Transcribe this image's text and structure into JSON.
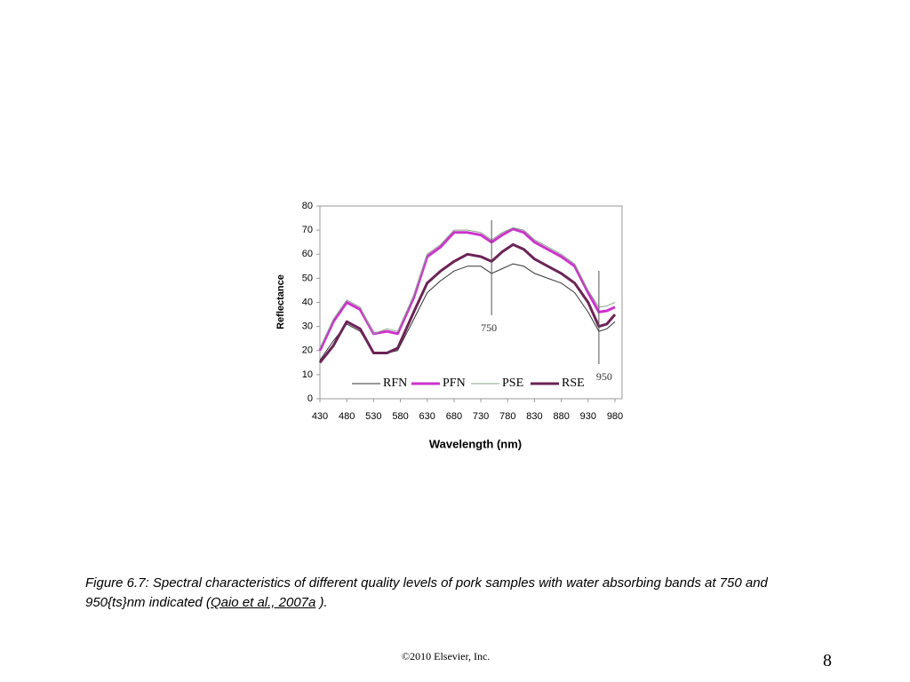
{
  "chart_data": {
    "type": "line",
    "x_label": "Wavelength (nm)",
    "y_label": "Reflectance",
    "x": [
      430,
      455,
      480,
      505,
      530,
      555,
      575,
      605,
      630,
      655,
      680,
      705,
      730,
      750,
      770,
      790,
      810,
      830,
      855,
      880,
      905,
      930,
      950,
      965,
      980
    ],
    "series": [
      {
        "name": "RFN",
        "color": "#333333",
        "line_width": 1,
        "values": [
          16,
          24,
          31,
          28,
          19,
          19,
          20,
          33,
          44,
          49,
          53,
          55,
          55,
          52,
          54,
          56,
          55,
          52,
          50,
          48,
          44,
          36,
          28,
          29,
          32
        ]
      },
      {
        "name": "PFN",
        "color": "#cc33cc",
        "line_width": 3,
        "values": [
          20,
          32,
          40,
          37,
          27,
          28,
          27,
          42,
          59,
          63,
          69,
          69,
          68,
          65,
          68,
          70.5,
          69,
          65,
          62,
          59,
          55,
          44,
          36,
          36.5,
          38
        ]
      },
      {
        "name": "PSE",
        "color": "#8aa58a",
        "line_width": 1,
        "values": [
          21,
          33,
          41,
          38,
          27,
          29,
          28,
          43,
          60,
          64,
          70,
          70,
          69,
          66,
          69,
          71,
          70,
          66,
          63,
          60,
          56,
          45,
          38,
          38.5,
          40
        ]
      },
      {
        "name": "RSE",
        "color": "#6b2456",
        "line_width": 3,
        "values": [
          15,
          22,
          32,
          29,
          19,
          19,
          21,
          36,
          48,
          53,
          57,
          60,
          59,
          57,
          61,
          64,
          62,
          58,
          55,
          52,
          48,
          40,
          30,
          31,
          35
        ]
      }
    ],
    "annotations": [
      {
        "x": 750
      },
      {
        "x": 950
      }
    ],
    "xlim": [
      430,
      980
    ],
    "xticks": [
      430,
      480,
      530,
      580,
      630,
      680,
      730,
      780,
      830,
      880,
      930,
      980
    ],
    "ylim": [
      0,
      80
    ],
    "yticks": [
      0,
      10,
      20,
      30,
      40,
      50,
      60,
      70,
      80
    ],
    "legend": "bottom"
  },
  "caption": {
    "text": "Figure 6.7: Spectral characteristics of different quality levels of pork samples with water absorbing bands at 750 and 950{ts}nm indicated (",
    "link": "Qaio et al., 2007a",
    "end": " )."
  },
  "footer": "©2010 Elsevier, Inc.",
  "page_number": "8"
}
